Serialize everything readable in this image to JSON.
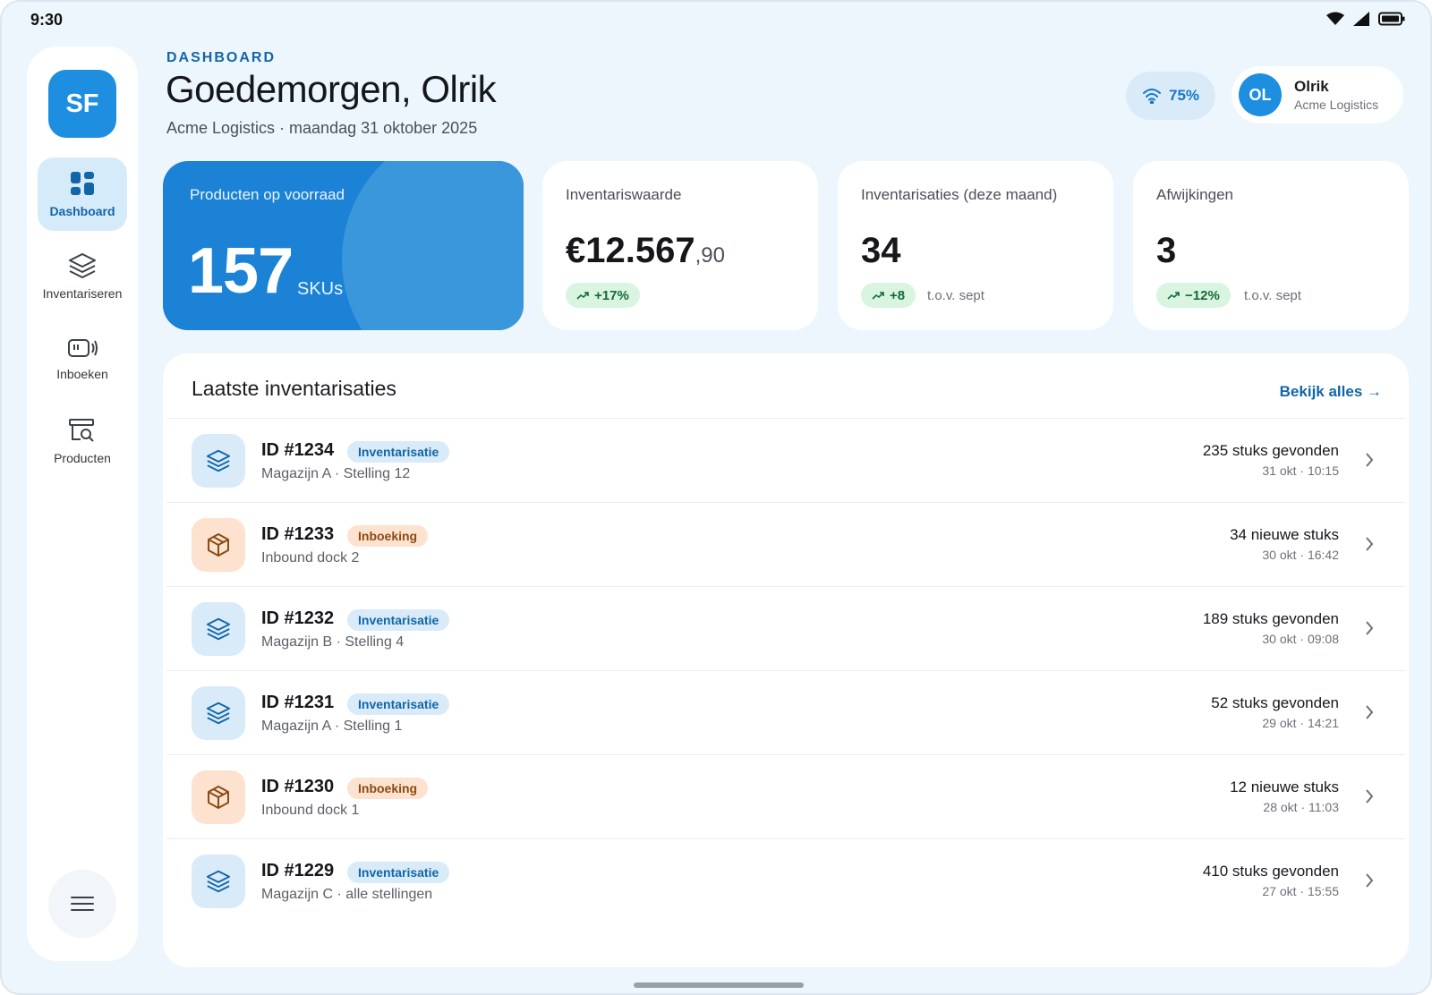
{
  "status_bar": {
    "time": "9:30"
  },
  "sidebar": {
    "logo": "SF",
    "items": [
      {
        "label": "Dashboard",
        "icon": "grid-icon",
        "active": true
      },
      {
        "label": "Inventariseren",
        "icon": "layers-icon",
        "active": false
      },
      {
        "label": "Inboeken",
        "icon": "scanner-icon",
        "active": false
      },
      {
        "label": "Producten",
        "icon": "product-search-icon",
        "active": false
      }
    ],
    "menu_icon": "hamburger-icon"
  },
  "header": {
    "eyebrow": "DASHBOARD",
    "greeting": "Goedemorgen, Olrik",
    "subtitle": "Acme Logistics · maandag 31 oktober 2025",
    "signal": "75%",
    "user": {
      "initials": "OL",
      "name": "Olrik",
      "company": "Acme Logistics"
    }
  },
  "kpis": {
    "stock": {
      "label": "Producten op voorraad",
      "value": "157",
      "unit": "SKUs"
    },
    "value": {
      "label": "Inventariswaarde",
      "main": "€12.567",
      "cents": ",90",
      "trend": "+17%"
    },
    "counts": {
      "label": "Inventarisaties (deze maand)",
      "value": "34",
      "trend": "+8",
      "note": "t.o.v. sept"
    },
    "deviations": {
      "label": "Afwijkingen",
      "value": "3",
      "trend": "−12%",
      "note": "t.o.v. sept"
    }
  },
  "recent": {
    "title": "Laatste inventarisaties",
    "view_all": "Bekijk alles →",
    "rows": [
      {
        "id": "ID #1234",
        "type": "Inventarisatie",
        "location": "Magazijn A · Stelling 12",
        "count": "235 stuks gevonden",
        "time": "31 okt · 10:15"
      },
      {
        "id": "ID #1233",
        "type": "Inboeking",
        "location": "Inbound dock 2",
        "count": "34 nieuwe stuks",
        "time": "30 okt · 16:42"
      },
      {
        "id": "ID #1232",
        "type": "Inventarisatie",
        "location": "Magazijn B · Stelling 4",
        "count": "189 stuks gevonden",
        "time": "30 okt · 09:08"
      },
      {
        "id": "ID #1231",
        "type": "Inventarisatie",
        "location": "Magazijn A · Stelling 1",
        "count": "52 stuks gevonden",
        "time": "29 okt · 14:21"
      },
      {
        "id": "ID #1230",
        "type": "Inboeking",
        "location": "Inbound dock 1",
        "count": "12 nieuwe stuks",
        "time": "28 okt · 11:03"
      },
      {
        "id": "ID #1229",
        "type": "Inventarisatie",
        "location": "Magazijn C · alle stellingen",
        "count": "410 stuks gevonden",
        "time": "27 okt · 15:55"
      }
    ]
  },
  "colors": {
    "accent": "#1d8ee0",
    "brand_dark": "#1266a8",
    "count_badge": "#d9ebf9",
    "intake_badge": "#fde2cf",
    "trend_up": "#d9f5e2"
  }
}
